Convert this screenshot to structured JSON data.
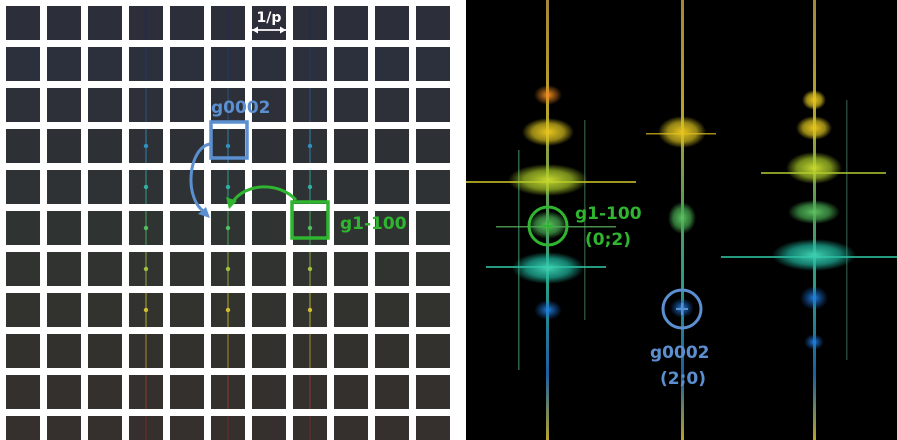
{
  "left": {
    "period_label": "1/p",
    "box_blue_label": "g0002",
    "box_green_label": "g1-100"
  },
  "right": {
    "circle_green_label": "g1-100",
    "circle_green_index": "(0;2)",
    "circle_blue_label": "g0002",
    "circle_blue_index": "(2;0)"
  },
  "colors": {
    "blue": "#5b8fd0",
    "green": "#2fb52f",
    "tile": "#2e3136"
  }
}
